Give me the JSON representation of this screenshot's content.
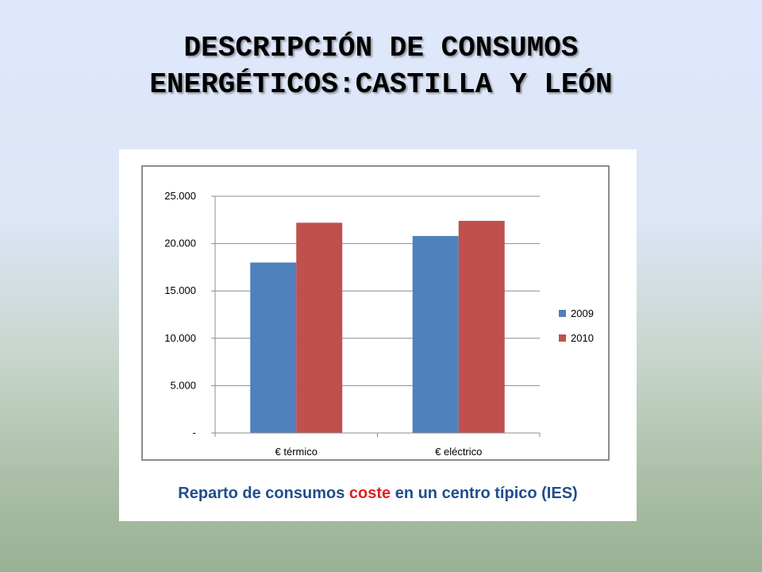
{
  "title": {
    "line1": "DESCRIPCIÓN DE CONSUMOS",
    "line2": "ENERGÉTICOS:CASTILLA Y LEÓN"
  },
  "caption": {
    "part1": "Reparto de consumos ",
    "highlight": "coste",
    "part2": " en un centro típico (IES)"
  },
  "colors": {
    "series_2009": "#4f81bd",
    "series_2010": "#c0504d",
    "caption_text": "#1f4e8c",
    "caption_highlight": "#e02020"
  },
  "chart_data": {
    "type": "bar",
    "categories": [
      "€ térmico",
      "€ eléctrico"
    ],
    "series": [
      {
        "name": "2009",
        "values": [
          18000,
          20800
        ]
      },
      {
        "name": "2010",
        "values": [
          22200,
          22400
        ]
      }
    ],
    "ylim": [
      0,
      25000
    ],
    "yticks": [
      0,
      5000,
      10000,
      15000,
      20000,
      25000
    ],
    "ytick_labels": [
      "-",
      "5.000",
      "10.000",
      "15.000",
      "20.000",
      "25.000"
    ],
    "grid": true,
    "legend_position": "right"
  }
}
